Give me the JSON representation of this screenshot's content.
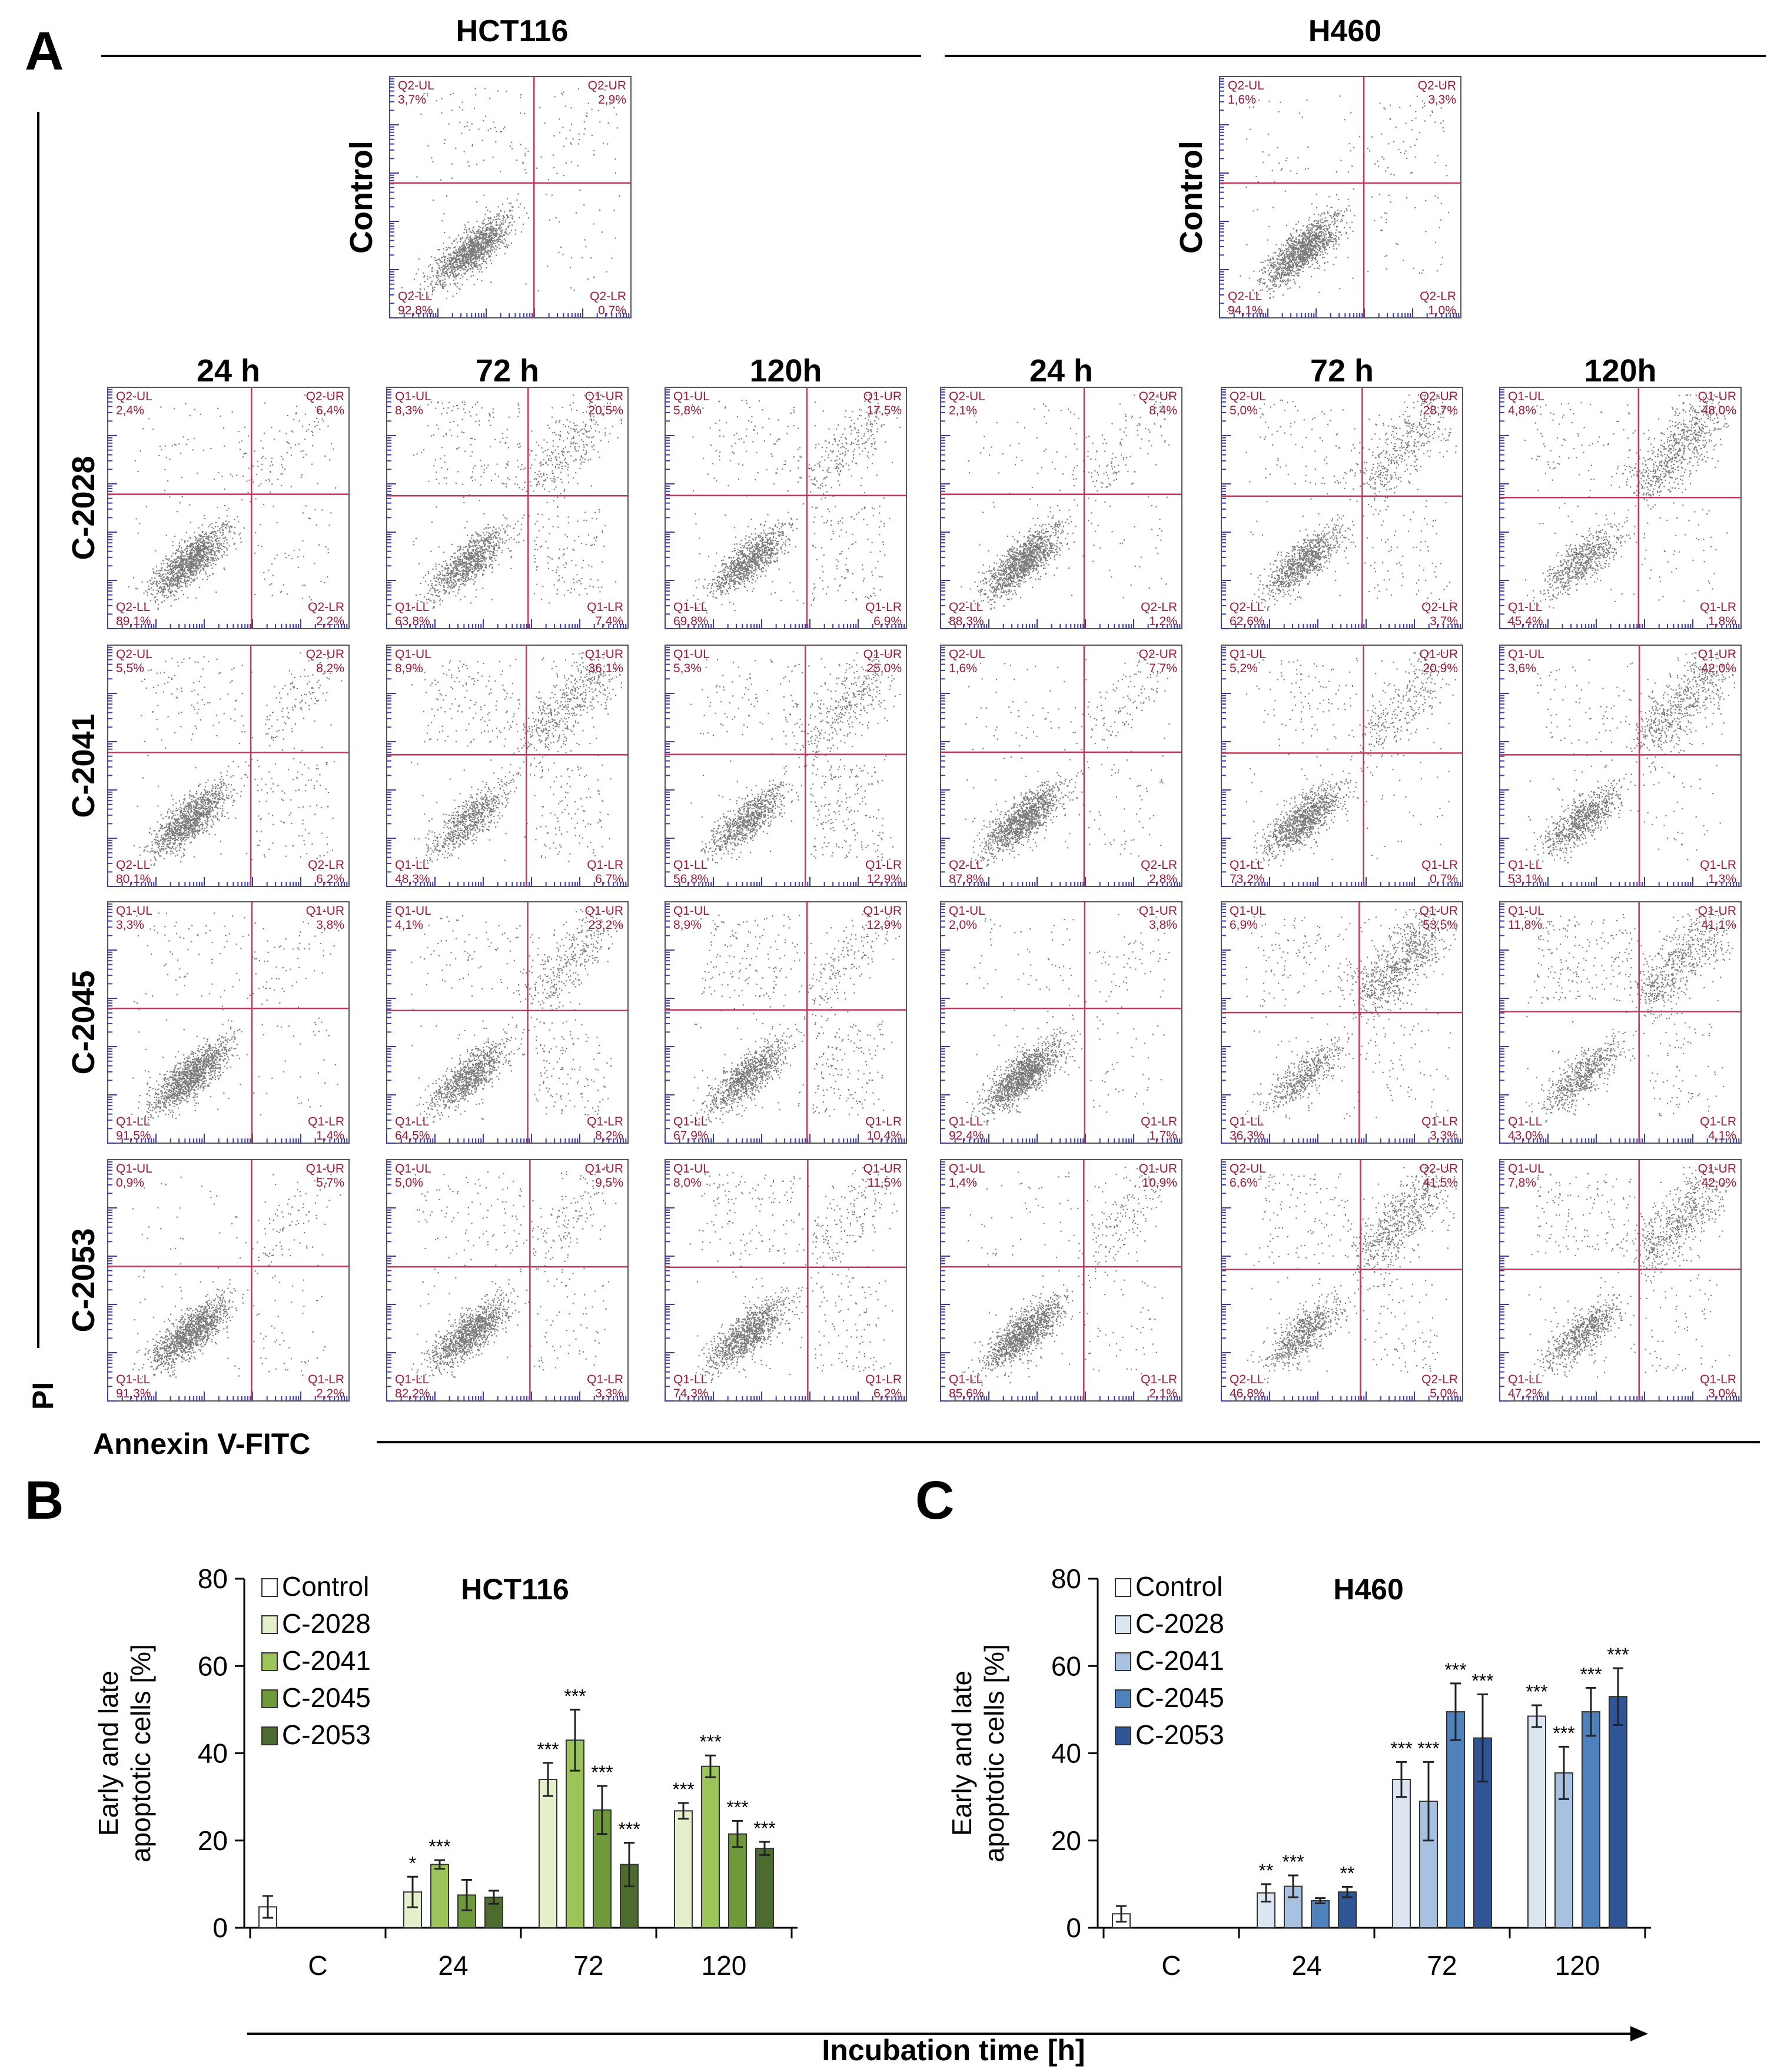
{
  "panel_a": {
    "letter": "A",
    "cell_lines": [
      "HCT116",
      "H460"
    ],
    "times": [
      "24 h",
      "72 h",
      "120h"
    ],
    "control_label": "Control",
    "compounds": [
      "C-2028",
      "C-2041",
      "C-2045",
      "C-2053"
    ],
    "y_axis_label": "PI",
    "x_axis_label": "Annexin V-FITC",
    "controls": [
      {
        "ul": "Q2-UL",
        "ulv": "3,7%",
        "ur": "Q2-UR",
        "urv": "2,9%",
        "ll": "Q2-LL",
        "llv": "92,8%",
        "lr": "Q2-LR",
        "lrv": "0,7%"
      },
      {
        "ul": "Q2-UL",
        "ulv": "1,6%",
        "ur": "Q2-UR",
        "urv": "3,3%",
        "ll": "Q2-LL",
        "llv": "94,1%",
        "lr": "Q2-LR",
        "lrv": "1,0%"
      }
    ],
    "plots": [
      [
        {
          "ul": "Q2-UL",
          "ulv": "2,4%",
          "ur": "Q2-UR",
          "urv": "6,4%",
          "ll": "Q2-LL",
          "llv": "89,1%",
          "lr": "Q2-LR",
          "lrv": "2,2%"
        },
        {
          "ul": "Q1-UL",
          "ulv": "8,3%",
          "ur": "Q1-UR",
          "urv": "20,5%",
          "ll": "Q1-LL",
          "llv": "63,8%",
          "lr": "Q1-LR",
          "lrv": "7,4%"
        },
        {
          "ul": "Q1-UL",
          "ulv": "5,8%",
          "ur": "Q1-UR",
          "urv": "17,5%",
          "ll": "Q1-LL",
          "llv": "69,8%",
          "lr": "Q1-LR",
          "lrv": "6,9%"
        },
        {
          "ul": "Q2-UL",
          "ulv": "2,1%",
          "ur": "Q2-UR",
          "urv": "8,4%",
          "ll": "Q2-LL",
          "llv": "88,3%",
          "lr": "Q2-LR",
          "lrv": "1,2%"
        },
        {
          "ul": "Q2-UL",
          "ulv": "5,0%",
          "ur": "Q2-UR",
          "urv": "28,7%",
          "ll": "Q2-LL",
          "llv": "62,6%",
          "lr": "Q2-LR",
          "lrv": "3,7%"
        },
        {
          "ul": "Q1-UL",
          "ulv": "4,8%",
          "ur": "Q1-UR",
          "urv": "48,0%",
          "ll": "Q1-LL",
          "llv": "45,4%",
          "lr": "Q1-LR",
          "lrv": "1,8%"
        }
      ],
      [
        {
          "ul": "Q2-UL",
          "ulv": "5,5%",
          "ur": "Q2-UR",
          "urv": "8,2%",
          "ll": "Q2-LL",
          "llv": "80,1%",
          "lr": "Q2-LR",
          "lrv": "6,2%"
        },
        {
          "ul": "Q1-UL",
          "ulv": "8,9%",
          "ur": "Q1-UR",
          "urv": "36,1%",
          "ll": "Q1-LL",
          "llv": "48,3%",
          "lr": "Q1-LR",
          "lrv": "6,7%"
        },
        {
          "ul": "Q1-UL",
          "ulv": "5,3%",
          "ur": "Q1-UR",
          "urv": "25,0%",
          "ll": "Q1-LL",
          "llv": "56,8%",
          "lr": "Q1-LR",
          "lrv": "12,9%"
        },
        {
          "ul": "Q2-UL",
          "ulv": "1,6%",
          "ur": "Q2-UR",
          "urv": "7,7%",
          "ll": "Q2-LL",
          "llv": "87,8%",
          "lr": "Q2-LR",
          "lrv": "2,8%"
        },
        {
          "ul": "Q1-UL",
          "ulv": "5,2%",
          "ur": "Q1-UR",
          "urv": "20,9%",
          "ll": "Q1-LL",
          "llv": "73,2%",
          "lr": "Q1-LR",
          "lrv": "0,7%"
        },
        {
          "ul": "Q1-UL",
          "ulv": "3,6%",
          "ur": "Q1-UR",
          "urv": "42,0%",
          "ll": "Q1-LL",
          "llv": "53,1%",
          "lr": "Q1-LR",
          "lrv": "1,3%"
        }
      ],
      [
        {
          "ul": "Q1-UL",
          "ulv": "3,3%",
          "ur": "Q1-UR",
          "urv": "3,8%",
          "ll": "Q1-LL",
          "llv": "91,5%",
          "lr": "Q1-LR",
          "lrv": "1,4%"
        },
        {
          "ul": "Q1-UL",
          "ulv": "4,1%",
          "ur": "Q1-UR",
          "urv": "23,2%",
          "ll": "Q1-LL",
          "llv": "64,5%",
          "lr": "Q1-LR",
          "lrv": "8,2%"
        },
        {
          "ul": "Q1-UL",
          "ulv": "8,9%",
          "ur": "Q1-UR",
          "urv": "12,9%",
          "ll": "Q1-LL",
          "llv": "67,9%",
          "lr": "Q1-LR",
          "lrv": "10,4%"
        },
        {
          "ul": "Q1-UL",
          "ulv": "2,0%",
          "ur": "Q1-UR",
          "urv": "3,8%",
          "ll": "Q1-LL",
          "llv": "92,4%",
          "lr": "Q1-LR",
          "lrv": "1,7%"
        },
        {
          "ul": "Q1-UL",
          "ulv": "6,9%",
          "ur": "Q1-UR",
          "urv": "53,5%",
          "ll": "Q1-LL",
          "llv": "36,3%",
          "lr": "Q1-LR",
          "lrv": "3,3%"
        },
        {
          "ul": "Q1-UL",
          "ulv": "11,8%",
          "ur": "Q1-UR",
          "urv": "41,1%",
          "ll": "Q1-LL",
          "llv": "43,0%",
          "lr": "Q1-LR",
          "lrv": "4,1%"
        }
      ],
      [
        {
          "ul": "Q1-UL",
          "ulv": "0,9%",
          "ur": "Q1-UR",
          "urv": "5,7%",
          "ll": "Q1-LL",
          "llv": "91,3%",
          "lr": "Q1-LR",
          "lrv": "2,2%"
        },
        {
          "ul": "Q1-UL",
          "ulv": "5,0%",
          "ur": "Q1-UR",
          "urv": "9,5%",
          "ll": "Q1-LL",
          "llv": "82,2%",
          "lr": "Q1-LR",
          "lrv": "3,3%"
        },
        {
          "ul": "Q1-UL",
          "ulv": "8,0%",
          "ur": "Q1-UR",
          "urv": "11,5%",
          "ll": "Q1-LL",
          "llv": "74,3%",
          "lr": "Q1-LR",
          "lrv": "6,2%"
        },
        {
          "ul": "Q1-UL",
          "ulv": "1,4%",
          "ur": "Q1-UR",
          "urv": "10,9%",
          "ll": "Q1-LL",
          "llv": "85,6%",
          "lr": "Q1-LR",
          "lrv": "2,1%"
        },
        {
          "ul": "Q2-UL",
          "ulv": "6,6%",
          "ur": "Q2-UR",
          "urv": "41,5%",
          "ll": "Q2-LL",
          "llv": "46,8%",
          "lr": "Q2-LR",
          "lrv": "5,0%"
        },
        {
          "ul": "Q1-UL",
          "ulv": "7,8%",
          "ur": "Q1-UR",
          "urv": "42,0%",
          "ll": "Q1-LL",
          "llv": "47,2%",
          "lr": "Q1-LR",
          "lrv": "3,0%"
        }
      ]
    ]
  },
  "colors": {
    "quadrant_line": "#c0395a",
    "quadrant_text": "#9a1b3c",
    "axis_tick": "#3b3bb3",
    "dots": "#111111",
    "green": [
      "#ffffff",
      "#e4efcb",
      "#9bc45a",
      "#6f9a3c",
      "#4d6b2e"
    ],
    "blue": [
      "#ffffff",
      "#dce6f2",
      "#a8c1e0",
      "#4f81bd",
      "#2f5597"
    ]
  },
  "chart_data": [
    {
      "type": "bar",
      "letter": "B",
      "title": "HCT116",
      "ylabel": "Early and late apoptotic cells [%]",
      "ylabel_lines": [
        "Early and late",
        "apoptotic cells [%]"
      ],
      "xlabel": "Incubation time [h]",
      "ylim": [
        0,
        80
      ],
      "yticks": [
        "0",
        "20",
        "40",
        "60",
        "80"
      ],
      "categories": [
        "C",
        "24",
        "72",
        "120"
      ],
      "series": [
        {
          "name": "Control",
          "values": [
            4.8,
            null,
            null,
            null
          ],
          "errors": [
            2.5,
            null,
            null,
            null
          ],
          "stars": [
            "",
            "",
            "",
            ""
          ]
        },
        {
          "name": "C-2028",
          "values": [
            null,
            8.2,
            34.0,
            26.8
          ],
          "errors": [
            null,
            3.5,
            3.8,
            1.8
          ],
          "stars": [
            "",
            "*",
            "***",
            "***"
          ]
        },
        {
          "name": "C-2041",
          "values": [
            null,
            14.5,
            43.0,
            37.0
          ],
          "errors": [
            null,
            1.0,
            7.0,
            2.5
          ],
          "stars": [
            "",
            "***",
            "***",
            "***"
          ]
        },
        {
          "name": "C-2045",
          "values": [
            null,
            7.5,
            27.0,
            21.5
          ],
          "errors": [
            null,
            3.5,
            5.5,
            3.0
          ],
          "stars": [
            "",
            "",
            "***",
            "***"
          ]
        },
        {
          "name": "C-2053",
          "values": [
            null,
            7.0,
            14.5,
            18.2
          ],
          "errors": [
            null,
            1.5,
            5.0,
            1.5
          ],
          "stars": [
            "",
            "",
            "***",
            "***"
          ]
        }
      ]
    },
    {
      "type": "bar",
      "letter": "C",
      "title": "H460",
      "ylabel": "Early and late apoptotic cells [%]",
      "ylabel_lines": [
        "Early and late",
        "apoptotic cells [%]"
      ],
      "xlabel": "Incubation time [h]",
      "ylim": [
        0,
        80
      ],
      "yticks": [
        "0",
        "20",
        "40",
        "60",
        "80"
      ],
      "categories": [
        "C",
        "24",
        "72",
        "120"
      ],
      "series": [
        {
          "name": "Control",
          "values": [
            3.2,
            null,
            null,
            null
          ],
          "errors": [
            1.8,
            null,
            null,
            null
          ],
          "stars": [
            "",
            "",
            "",
            ""
          ]
        },
        {
          "name": "C-2028",
          "values": [
            null,
            8.0,
            34.0,
            48.5
          ],
          "errors": [
            null,
            2.0,
            4.0,
            2.5
          ],
          "stars": [
            "",
            "**",
            "***",
            "***"
          ]
        },
        {
          "name": "C-2041",
          "values": [
            null,
            9.5,
            29.0,
            35.5
          ],
          "errors": [
            null,
            2.5,
            9.0,
            6.0
          ],
          "stars": [
            "",
            "***",
            "***",
            "***"
          ]
        },
        {
          "name": "C-2045",
          "values": [
            null,
            6.2,
            49.5,
            49.5
          ],
          "errors": [
            null,
            0.6,
            6.5,
            5.5
          ],
          "stars": [
            "",
            "",
            "***",
            "***"
          ]
        },
        {
          "name": "C-2053",
          "values": [
            null,
            8.2,
            43.5,
            53.0
          ],
          "errors": [
            null,
            1.2,
            10.0,
            6.5
          ],
          "stars": [
            "",
            "**",
            "***",
            "***"
          ]
        }
      ]
    }
  ]
}
